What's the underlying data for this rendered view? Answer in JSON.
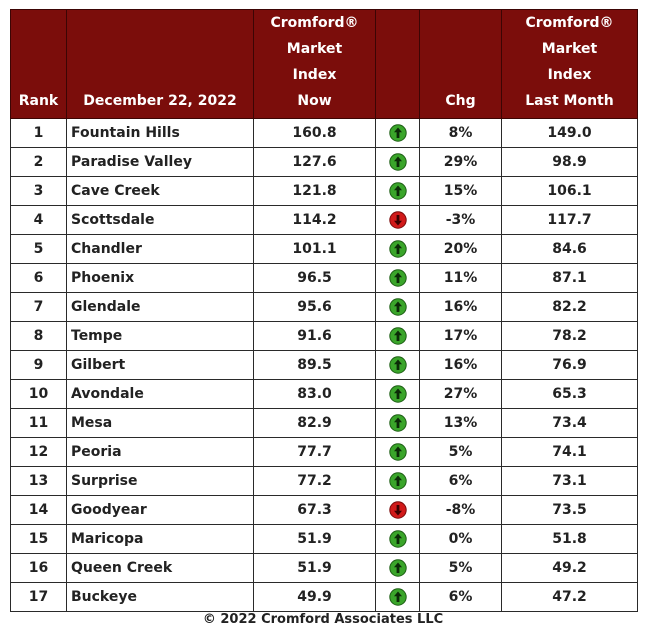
{
  "header": {
    "rank": "Rank",
    "date": "December 22, 2022",
    "index_now": [
      "Cromford®",
      "Market",
      "Index",
      "Now"
    ],
    "chg": "Chg",
    "index_last": [
      "Cromford®",
      "Market",
      "Index",
      "Last Month"
    ]
  },
  "colors": {
    "header_bg": "#7b0d0b",
    "up_arrow": "#3aa52a",
    "down_arrow": "#d11a1a"
  },
  "rows": [
    {
      "rank": "1",
      "name": "Fountain Hills",
      "now": "160.8",
      "dir": "up",
      "chg": "8%",
      "last": "149.0"
    },
    {
      "rank": "2",
      "name": "Paradise Valley",
      "now": "127.6",
      "dir": "up",
      "chg": "29%",
      "last": "98.9"
    },
    {
      "rank": "3",
      "name": "Cave Creek",
      "now": "121.8",
      "dir": "up",
      "chg": "15%",
      "last": "106.1"
    },
    {
      "rank": "4",
      "name": "Scottsdale",
      "now": "114.2",
      "dir": "down",
      "chg": "-3%",
      "last": "117.7"
    },
    {
      "rank": "5",
      "name": "Chandler",
      "now": "101.1",
      "dir": "up",
      "chg": "20%",
      "last": "84.6"
    },
    {
      "rank": "6",
      "name": "Phoenix",
      "now": "96.5",
      "dir": "up",
      "chg": "11%",
      "last": "87.1"
    },
    {
      "rank": "7",
      "name": "Glendale",
      "now": "95.6",
      "dir": "up",
      "chg": "16%",
      "last": "82.2"
    },
    {
      "rank": "8",
      "name": "Tempe",
      "now": "91.6",
      "dir": "up",
      "chg": "17%",
      "last": "78.2"
    },
    {
      "rank": "9",
      "name": "Gilbert",
      "now": "89.5",
      "dir": "up",
      "chg": "16%",
      "last": "76.9"
    },
    {
      "rank": "10",
      "name": "Avondale",
      "now": "83.0",
      "dir": "up",
      "chg": "27%",
      "last": "65.3"
    },
    {
      "rank": "11",
      "name": "Mesa",
      "now": "82.9",
      "dir": "up",
      "chg": "13%",
      "last": "73.4"
    },
    {
      "rank": "12",
      "name": "Peoria",
      "now": "77.7",
      "dir": "up",
      "chg": "5%",
      "last": "74.1"
    },
    {
      "rank": "13",
      "name": "Surprise",
      "now": "77.2",
      "dir": "up",
      "chg": "6%",
      "last": "73.1"
    },
    {
      "rank": "14",
      "name": "Goodyear",
      "now": "67.3",
      "dir": "down",
      "chg": "-8%",
      "last": "73.5"
    },
    {
      "rank": "15",
      "name": "Maricopa",
      "now": "51.9",
      "dir": "up",
      "chg": "0%",
      "last": "51.8"
    },
    {
      "rank": "16",
      "name": "Queen Creek",
      "now": "51.9",
      "dir": "up",
      "chg": "5%",
      "last": "49.2"
    },
    {
      "rank": "17",
      "name": "Buckeye",
      "now": "49.9",
      "dir": "up",
      "chg": "6%",
      "last": "47.2"
    }
  ],
  "footer": "© 2022 Cromford Associates LLC"
}
